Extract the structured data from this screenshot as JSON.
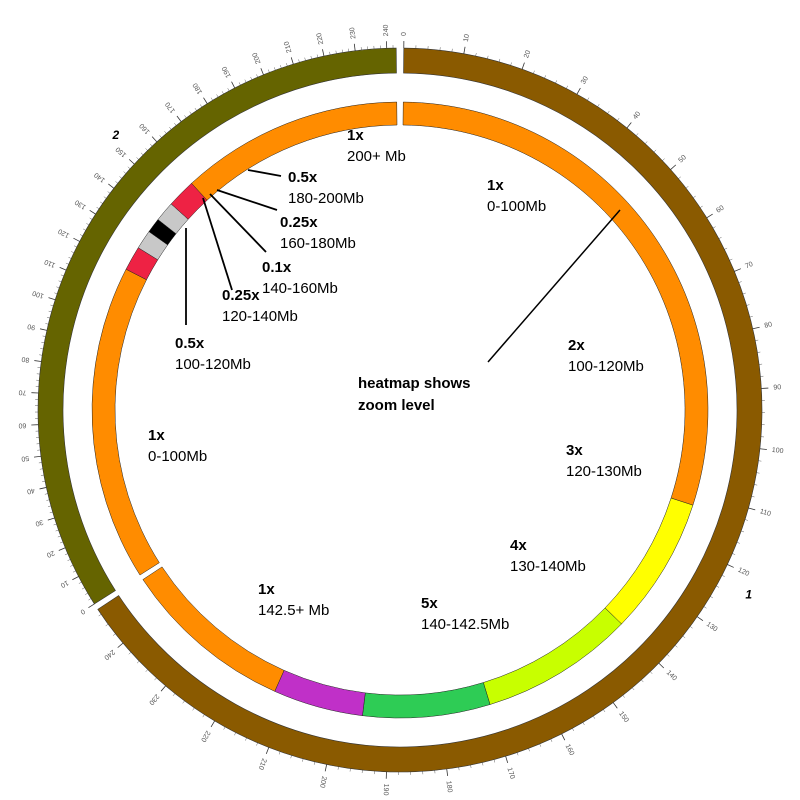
{
  "chromosomes": [
    {
      "name": "1",
      "color": "#8a5a00",
      "start_mb": 0,
      "end_mb": 247,
      "tick_every": 10
    },
    {
      "name": "2",
      "color": "#656400",
      "start_mb": 0,
      "end_mb": 243,
      "tick_every": 10
    }
  ],
  "zoom_scale_segments": [
    {
      "chromosome": "1",
      "start_mb": 0,
      "end_mb": 100,
      "zoom": 1,
      "color": "#ff8c00",
      "zoom_label": "1x",
      "range_label": "0-100Mb"
    },
    {
      "chromosome": "1",
      "start_mb": 100,
      "end_mb": 120,
      "zoom": 2,
      "color": "#ffff00",
      "zoom_label": "2x",
      "range_label": "100-120Mb"
    },
    {
      "chromosome": "1",
      "start_mb": 120,
      "end_mb": 130,
      "zoom": 3,
      "color": "#c8ff00",
      "zoom_label": "3x",
      "range_label": "120-130Mb"
    },
    {
      "chromosome": "1",
      "start_mb": 130,
      "end_mb": 140,
      "zoom": 4,
      "color": "#2ecc55",
      "zoom_label": "4x",
      "range_label": "130-140Mb"
    },
    {
      "chromosome": "1",
      "start_mb": 140,
      "end_mb": 142.5,
      "zoom": 5,
      "color": "#c030c8",
      "zoom_label": "5x",
      "range_label": "140-142.5Mb"
    },
    {
      "chromosome": "1",
      "start_mb": 142.5,
      "end_mb": 247,
      "zoom": 1,
      "color": "#ff8c00",
      "zoom_label": "1x",
      "range_label": "142.5+ Mb"
    },
    {
      "chromosome": "2",
      "start_mb": 0,
      "end_mb": 100,
      "zoom": 1,
      "color": "#ff8c00",
      "zoom_label": "1x",
      "range_label": "0-100Mb"
    },
    {
      "chromosome": "2",
      "start_mb": 100,
      "end_mb": 120,
      "zoom": 0.5,
      "color": "#ee2244",
      "zoom_label": "0.5x",
      "range_label": "100-120Mb"
    },
    {
      "chromosome": "2",
      "start_mb": 120,
      "end_mb": 140,
      "zoom": 0.25,
      "color": "#c8c8c8",
      "zoom_label": "0.25x",
      "range_label": "120-140Mb"
    },
    {
      "chromosome": "2",
      "start_mb": 140,
      "end_mb": 160,
      "zoom": 0.1,
      "color": "#000000",
      "zoom_label": "0.1x",
      "range_label": "140-160Mb"
    },
    {
      "chromosome": "2",
      "start_mb": 160,
      "end_mb": 180,
      "zoom": 0.25,
      "color": "#c8c8c8",
      "zoom_label": "0.25x",
      "range_label": "160-180Mb"
    },
    {
      "chromosome": "2",
      "start_mb": 180,
      "end_mb": 200,
      "zoom": 0.5,
      "color": "#ee2244",
      "zoom_label": "0.5x",
      "range_label": "180-200Mb"
    },
    {
      "chromosome": "2",
      "start_mb": 200,
      "end_mb": 243,
      "zoom": 1,
      "color": "#ff8c00",
      "zoom_label": "1x",
      "range_label": "200+ Mb"
    }
  ],
  "callout": {
    "line1": "heatmap shows",
    "line2": "zoom level"
  }
}
